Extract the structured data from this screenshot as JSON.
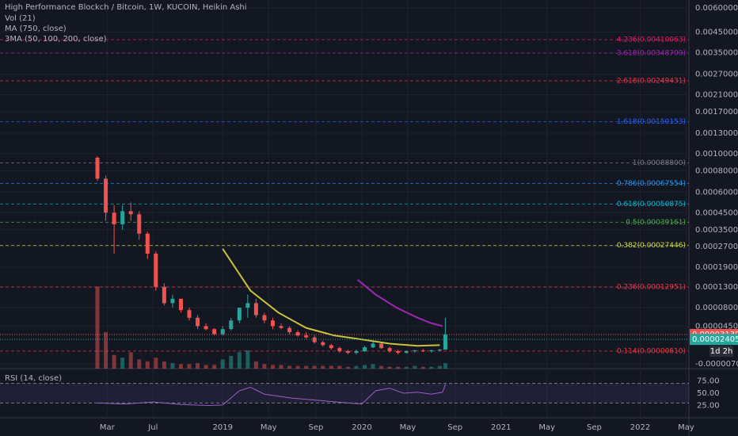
{
  "chart_data": {
    "type": "candlestick",
    "title": "High Performance Blockch / Bitcoin, 1W, KUCOIN, Heikin Ashi",
    "indicators": [
      "Vol (21)",
      "MA (750, close)",
      "3MA (50, 100, 200, close)"
    ],
    "log_scale": true,
    "grid": true,
    "up_color": "#26a69a",
    "down_color": "#ef5350",
    "x": [
      2018.1,
      2018.16,
      2018.22,
      2018.28,
      2018.34,
      2018.4,
      2018.46,
      2018.52,
      2018.58,
      2018.64,
      2018.7,
      2018.76,
      2018.82,
      2018.88,
      2018.94,
      2019.0,
      2019.06,
      2019.12,
      2019.18,
      2019.24,
      2019.3,
      2019.36,
      2019.42,
      2019.48,
      2019.54,
      2019.6,
      2019.66,
      2019.72,
      2019.78,
      2019.84,
      2019.9,
      2019.96,
      2020.02,
      2020.08,
      2020.14,
      2020.2,
      2020.26,
      2020.32,
      2020.38,
      2020.44,
      2020.5,
      2020.56,
      2020.6
    ],
    "open": [
      0.00095,
      0.00072,
      0.00045,
      0.00038,
      0.00046,
      0.00044,
      0.00033,
      0.00024,
      0.00013,
      9e-05,
      0.0001,
      7.5e-05,
      6e-05,
      4.5e-05,
      4e-05,
      3.2e-05,
      4e-05,
      5.5e-05,
      8e-05,
      9e-05,
      6.5e-05,
      5.5e-05,
      4.5e-05,
      4.2e-05,
      3.5e-05,
      3e-05,
      2.7e-05,
      2e-05,
      1.6e-05,
      1.2e-05,
      8e-06,
      6e-06,
      8e-06,
      1.3e-05,
      1.8e-05,
      1.2e-05,
      8e-06,
      6e-06,
      8e-06,
      9e-06,
      8e-06,
      9e-06,
      1e-05
    ],
    "high": [
      0.00097,
      0.00075,
      0.0005,
      0.0005,
      0.00052,
      0.00046,
      0.00034,
      0.00025,
      0.00014,
      0.00011,
      0.0001,
      8e-05,
      6.5e-05,
      5e-05,
      4.2e-05,
      4.5e-05,
      6e-05,
      8e-05,
      0.00011,
      0.0001,
      7e-05,
      6e-05,
      5e-05,
      4.5e-05,
      3.8e-05,
      3.5e-05,
      3e-05,
      2.2e-05,
      1.8e-05,
      1.4e-05,
      1e-05,
      1e-05,
      1.5e-05,
      2.2e-05,
      2e-05,
      1.4e-05,
      1e-05,
      9e-06,
      1e-05,
      1.1e-05,
      1e-05,
      1.1e-05,
      6e-05
    ],
    "low": [
      0.0007,
      0.0004,
      0.00024,
      0.00035,
      0.0004,
      0.0003,
      0.00022,
      0.00012,
      8.5e-05,
      8e-05,
      7e-05,
      5.5e-05,
      4e-05,
      3.8e-05,
      3e-05,
      3e-05,
      3.8e-05,
      5e-05,
      6e-05,
      6e-05,
      5e-05,
      4e-05,
      4e-05,
      3.2e-05,
      2.8e-05,
      2.5e-05,
      1.8e-05,
      1.4e-05,
      1e-05,
      6e-06,
      4e-06,
      4e-06,
      7e-06,
      1.2e-05,
      1.1e-05,
      6e-06,
      4e-06,
      5e-06,
      6e-06,
      7e-06,
      6e-06,
      8e-06,
      1e-05
    ],
    "close": [
      0.00072,
      0.00045,
      0.00038,
      0.00046,
      0.00044,
      0.00033,
      0.00024,
      0.00013,
      9e-05,
      0.0001,
      7.5e-05,
      6e-05,
      4.5e-05,
      4e-05,
      3.2e-05,
      4e-05,
      5.5e-05,
      8e-05,
      9e-05,
      6.5e-05,
      5.5e-05,
      4.5e-05,
      4.2e-05,
      3.5e-05,
      3e-05,
      2.7e-05,
      2e-05,
      1.6e-05,
      1.2e-05,
      8e-06,
      6e-06,
      8e-06,
      1.3e-05,
      1.8e-05,
      1.2e-05,
      8e-06,
      6e-06,
      8e-06,
      9e-06,
      8e-06,
      9e-06,
      1e-05,
      3.139e-05
    ],
    "volume": [
      90,
      40,
      15,
      12,
      18,
      10,
      8,
      12,
      8,
      6,
      5,
      5,
      6,
      4,
      4,
      10,
      14,
      18,
      20,
      8,
      5,
      4,
      4,
      3,
      3,
      3,
      3,
      3,
      3,
      3,
      2,
      3,
      4,
      5,
      3,
      2,
      2,
      2,
      3,
      2,
      2,
      3,
      6
    ],
    "volume_max": 100,
    "lines": [
      {
        "name": "MA (750, close)",
        "color": "#c8c43a",
        "x": [
          2019.0,
          2019.2,
          2019.4,
          2019.6,
          2019.8,
          2020.0,
          2020.2,
          2020.4,
          2020.56
        ],
        "values": [
          0.00026,
          0.00012,
          7e-05,
          4.2e-05,
          3e-05,
          2.4e-05,
          1.8e-05,
          1.5e-05,
          1.6e-05
        ]
      },
      {
        "name": "3MA (50, 100, 200, close)",
        "color": "#9c27b0",
        "x": [
          2019.97,
          2020.1,
          2020.25,
          2020.4,
          2020.5,
          2020.58
        ],
        "values": [
          0.00015,
          0.00011,
          8e-05,
          6e-05,
          5e-05,
          4.5e-05
        ]
      }
    ],
    "fib_levels": [
      {
        "label": "4.236(0.00410063)",
        "value": 0.00410063,
        "color": "#e91e63"
      },
      {
        "label": "3.618(0.00348709)",
        "value": 0.00348709,
        "color": "#9c27b0"
      },
      {
        "label": "2.618(0.00249431)",
        "value": 0.00249431,
        "color": "#f23645"
      },
      {
        "label": "1.618(0.00150153)",
        "value": 0.00150153,
        "color": "#2962ff"
      },
      {
        "label": "1(0.00088800)",
        "value": 0.000888,
        "color": "#787b86"
      },
      {
        "label": "0.786(0.00067554)",
        "value": 0.00067554,
        "color": "#2196f3"
      },
      {
        "label": "0.618(0.00050875)",
        "value": 0.00050875,
        "color": "#00bcd4"
      },
      {
        "label": "0.5(0.00039161)",
        "value": 0.00039161,
        "color": "#4caf50"
      },
      {
        "label": "0.382(0.00027446)",
        "value": 0.00027446,
        "color": "#cddc39"
      },
      {
        "label": "0.236(0.00012951)",
        "value": 0.00012951,
        "color": "#f23645"
      },
      {
        "label": "0.114(0.00000810)",
        "value": 8.1e-06,
        "color": "#f23645"
      }
    ],
    "ylim": [
      -1.2e-05,
      0.0066
    ],
    "yticks": [
      {
        "value": 0.006,
        "label": "0.00600000"
      },
      {
        "value": 0.0045,
        "label": "0.00450000"
      },
      {
        "value": 0.0035,
        "label": "0.00350000"
      },
      {
        "value": 0.0027,
        "label": "0.00270000"
      },
      {
        "value": 0.0021,
        "label": "0.00210000"
      },
      {
        "value": 0.0017,
        "label": "0.00170000"
      },
      {
        "value": 0.0013,
        "label": "0.00130000"
      },
      {
        "value": 0.001,
        "label": "0.00100000"
      },
      {
        "value": 0.0008,
        "label": "0.00080000"
      },
      {
        "value": 0.0006,
        "label": "0.00060000"
      },
      {
        "value": 0.00045,
        "label": "0.00045000"
      },
      {
        "value": 0.00035,
        "label": "0.00035000"
      },
      {
        "value": 0.00027,
        "label": "0.00027000"
      },
      {
        "value": 0.00019,
        "label": "0.00019000"
      },
      {
        "value": 0.00013,
        "label": "0.00013000"
      },
      {
        "value": 8e-05,
        "label": "0.00008000"
      },
      {
        "value": 4.5e-05,
        "label": "0.00004500"
      },
      {
        "value": -7e-06,
        "label": "-0.00000700"
      }
    ],
    "price_labels": [
      {
        "value": 3.139e-05,
        "label": "0.00003139",
        "color": "#ef5350"
      },
      {
        "value": 2.405e-05,
        "label": "0.00002405",
        "color": "#26a69a"
      }
    ],
    "countdown": "1d 2h",
    "xlim": [
      2017.4,
      2022.35
    ],
    "xticks": [
      {
        "value": 2018.17,
        "label": "Mar"
      },
      {
        "value": 2018.5,
        "label": "Jul"
      },
      {
        "value": 2019.0,
        "label": "2019"
      },
      {
        "value": 2019.33,
        "label": "May"
      },
      {
        "value": 2019.67,
        "label": "Sep"
      },
      {
        "value": 2020.0,
        "label": "2020"
      },
      {
        "value": 2020.33,
        "label": "May"
      },
      {
        "value": 2020.67,
        "label": "Sep"
      },
      {
        "value": 2021.0,
        "label": "2021"
      },
      {
        "value": 2021.33,
        "label": "May"
      },
      {
        "value": 2021.67,
        "label": "Sep"
      },
      {
        "value": 2022.0,
        "label": "2022"
      },
      {
        "value": 2022.33,
        "label": "May"
      }
    ],
    "rsi": {
      "title": "RSI (14, close)",
      "color": "#9c5fc7",
      "band_color": "#7e57c2",
      "ylim": [
        0,
        100
      ],
      "band": [
        30,
        70
      ],
      "yticks": [
        {
          "value": 75,
          "label": "75.00"
        },
        {
          "value": 50,
          "label": "50.00"
        },
        {
          "value": 25,
          "label": "25.00"
        }
      ],
      "x": [
        2018.1,
        2018.3,
        2018.5,
        2018.7,
        2018.9,
        2019.0,
        2019.12,
        2019.2,
        2019.3,
        2019.5,
        2019.7,
        2019.9,
        2020.0,
        2020.1,
        2020.2,
        2020.3,
        2020.4,
        2020.5,
        2020.58,
        2020.6
      ],
      "values": [
        30,
        28,
        32,
        27,
        25,
        26,
        55,
        62,
        48,
        40,
        35,
        30,
        28,
        55,
        60,
        50,
        52,
        48,
        52,
        68
      ]
    }
  }
}
